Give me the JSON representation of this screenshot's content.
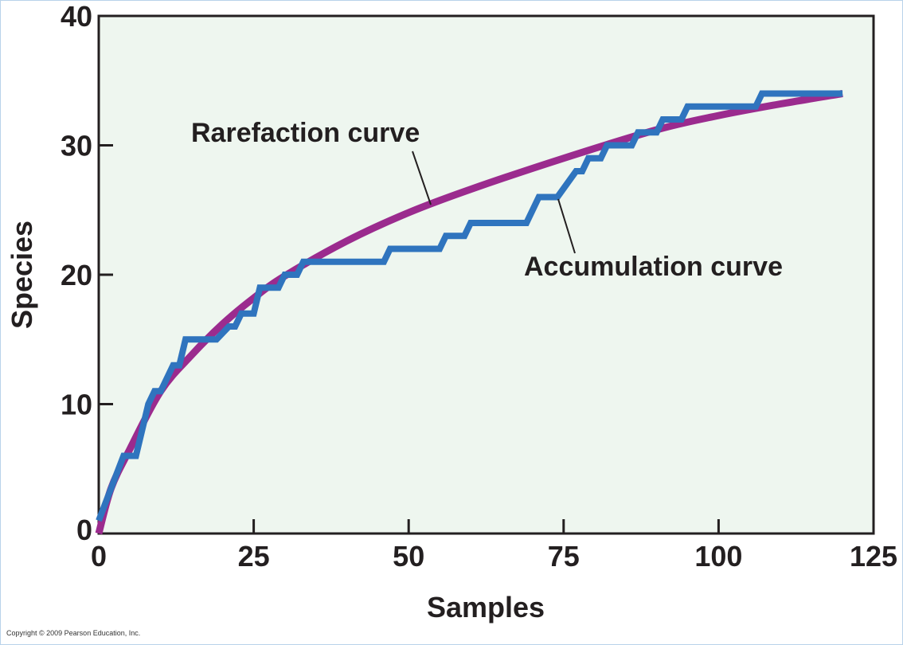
{
  "chart_data": {
    "type": "line",
    "xlabel": "Samples",
    "ylabel": "Species",
    "xlim": [
      0,
      125
    ],
    "ylim": [
      0,
      40
    ],
    "xticks": [
      "0",
      "25",
      "50",
      "75",
      "100",
      "125"
    ],
    "yticks": [
      "0",
      "10",
      "20",
      "30",
      "40"
    ],
    "grid": false,
    "background": "#eef6ef",
    "series": [
      {
        "name": "Rarefaction curve",
        "color": "#9b2b8e",
        "points": [
          [
            0,
            0
          ],
          [
            2,
            3.5
          ],
          [
            5,
            6.5
          ],
          [
            10,
            11
          ],
          [
            15,
            13.8
          ],
          [
            20,
            16.2
          ],
          [
            25,
            18.2
          ],
          [
            30,
            19.9
          ],
          [
            40,
            22.6
          ],
          [
            50,
            24.8
          ],
          [
            60,
            26.6
          ],
          [
            75,
            29
          ],
          [
            90,
            31.2
          ],
          [
            100,
            32.3
          ],
          [
            110,
            33.2
          ],
          [
            120,
            34
          ]
        ]
      },
      {
        "name": "Accumulation curve",
        "color": "#2f74be",
        "points": [
          [
            0,
            1
          ],
          [
            4,
            6
          ],
          [
            6,
            6
          ],
          [
            8,
            10
          ],
          [
            9,
            11
          ],
          [
            10,
            11
          ],
          [
            12,
            13
          ],
          [
            13,
            13
          ],
          [
            14,
            15
          ],
          [
            19,
            15
          ],
          [
            21,
            16
          ],
          [
            22,
            16
          ],
          [
            23,
            17
          ],
          [
            25,
            17
          ],
          [
            26,
            19
          ],
          [
            29,
            19
          ],
          [
            30,
            20
          ],
          [
            32,
            20
          ],
          [
            33,
            21
          ],
          [
            46,
            21
          ],
          [
            47,
            22
          ],
          [
            55,
            22
          ],
          [
            56,
            23
          ],
          [
            59,
            23
          ],
          [
            60,
            24
          ],
          [
            69,
            24
          ],
          [
            71,
            26
          ],
          [
            74,
            26
          ],
          [
            77,
            28
          ],
          [
            78,
            28
          ],
          [
            79,
            29
          ],
          [
            81,
            29
          ],
          [
            82,
            30
          ],
          [
            86,
            30
          ],
          [
            87,
            31
          ],
          [
            90,
            31
          ],
          [
            91,
            32
          ],
          [
            94,
            32
          ],
          [
            95,
            33
          ],
          [
            106,
            33
          ],
          [
            107,
            34
          ],
          [
            120,
            34
          ]
        ]
      }
    ],
    "annotations": [
      {
        "text": "Rarefaction curve",
        "series": "Rarefaction curve"
      },
      {
        "text": "Accumulation curve",
        "series": "Accumulation curve"
      }
    ]
  },
  "copyright": "Copyright © 2009 Pearson Education, Inc."
}
